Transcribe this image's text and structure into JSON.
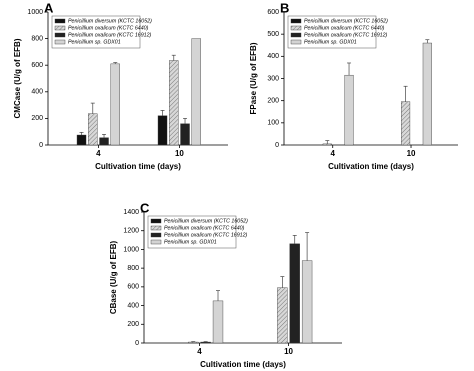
{
  "chart_data": [
    {
      "type": "bar",
      "title": "A",
      "x_label": "Cultivation time (days)",
      "y_label": "CMCase (U/g of EFB)",
      "categories": [
        "4",
        "10"
      ],
      "ylim": [
        0,
        1000
      ],
      "yticks": [
        0,
        200,
        400,
        600,
        800,
        1000
      ],
      "legend": "upper left",
      "series": [
        {
          "name": "Penicillium diversum (KCTC 16052)",
          "color": "#111111",
          "hatch": false,
          "values": [
            75,
            220
          ],
          "errors": [
            20,
            40
          ]
        },
        {
          "name": "Penicillium oxalicum (KCTC 6440)",
          "color": "#c8c8c8",
          "hatch": true,
          "values": [
            235,
            635
          ],
          "errors": [
            80,
            40
          ]
        },
        {
          "name": "Penicillium oxalicum (KCTC 16912)",
          "color": "#222222",
          "hatch": false,
          "values": [
            55,
            160
          ],
          "errors": [
            25,
            40
          ]
        },
        {
          "name": "Penicillium sp. GDX01",
          "color": "#d4d4d4",
          "hatch": false,
          "values": [
            610,
            800
          ],
          "errors": [
            10,
            0
          ]
        }
      ]
    },
    {
      "type": "bar",
      "title": "B",
      "x_label": "Cultivation time (days)",
      "y_label": "FPase (U/g of EFB)",
      "categories": [
        "4",
        "10"
      ],
      "ylim": [
        0,
        600
      ],
      "yticks": [
        0,
        100,
        200,
        300,
        400,
        500,
        600
      ],
      "legend": "upper left",
      "series": [
        {
          "name": "Penicillium diversum (KCTC 16052)",
          "color": "#111111",
          "hatch": false,
          "values": [
            0,
            0
          ],
          "errors": [
            0,
            0
          ]
        },
        {
          "name": "Penicillium oxalicum (KCTC 6440)",
          "color": "#c8c8c8",
          "hatch": true,
          "values": [
            5,
            195
          ],
          "errors": [
            15,
            70
          ]
        },
        {
          "name": "Penicillium oxalicum (KCTC 16912)",
          "color": "#222222",
          "hatch": false,
          "values": [
            0,
            0
          ],
          "errors": [
            0,
            0
          ]
        },
        {
          "name": "Penicillium sp. GDX01",
          "color": "#d4d4d4",
          "hatch": false,
          "values": [
            315,
            460
          ],
          "errors": [
            55,
            15
          ]
        }
      ]
    },
    {
      "type": "bar",
      "title": "C",
      "x_label": "Cultivation time (days)",
      "y_label": "CBase (U/g of EFB)",
      "categories": [
        "4",
        "10"
      ],
      "ylim": [
        0,
        1400
      ],
      "yticks": [
        0,
        200,
        400,
        600,
        800,
        1000,
        1200,
        1400
      ],
      "legend": "upper left",
      "series": [
        {
          "name": "Penicillium diversum (KCTC 16052)",
          "color": "#111111",
          "hatch": false,
          "values": [
            0,
            0
          ],
          "errors": [
            0,
            0
          ]
        },
        {
          "name": "Penicillium oxalicum (KCTC 6440)",
          "color": "#c8c8c8",
          "hatch": true,
          "values": [
            10,
            590
          ],
          "errors": [
            5,
            120
          ]
        },
        {
          "name": "Penicillium oxalicum (KCTC 16912)",
          "color": "#222222",
          "hatch": false,
          "values": [
            10,
            1060
          ],
          "errors": [
            5,
            90
          ]
        },
        {
          "name": "Penicillium sp. GDX01",
          "color": "#d4d4d4",
          "hatch": false,
          "values": [
            450,
            880
          ],
          "errors": [
            110,
            300
          ]
        }
      ]
    }
  ]
}
